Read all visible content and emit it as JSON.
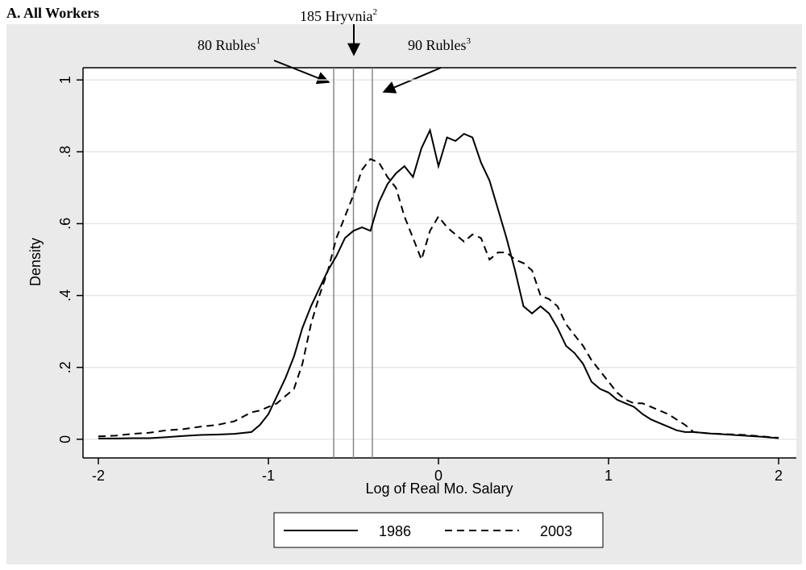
{
  "chart_data": {
    "type": "line",
    "title": "A. All Workers",
    "x_label": "Log of Real Mo. Salary",
    "y_label": "Density",
    "x": [
      -2,
      -1.9,
      -1.8,
      -1.7,
      -1.6,
      -1.5,
      -1.4,
      -1.3,
      -1.2,
      -1.1,
      -1.05,
      -1,
      -0.95,
      -0.9,
      -0.85,
      -0.8,
      -0.75,
      -0.7,
      -0.65,
      -0.6,
      -0.55,
      -0.5,
      -0.45,
      -0.4,
      -0.35,
      -0.3,
      -0.25,
      -0.2,
      -0.15,
      -0.1,
      -0.05,
      0,
      0.05,
      0.1,
      0.15,
      0.2,
      0.25,
      0.3,
      0.35,
      0.4,
      0.45,
      0.5,
      0.55,
      0.6,
      0.65,
      0.7,
      0.75,
      0.8,
      0.85,
      0.9,
      0.95,
      1,
      1.05,
      1.1,
      1.15,
      1.2,
      1.25,
      1.3,
      1.35,
      1.4,
      1.45,
      1.5,
      1.6,
      1.7,
      1.8,
      1.9,
      2
    ],
    "series": [
      {
        "name": "1986",
        "color": "#000000",
        "dash": "solid",
        "values": [
          0.002,
          0.002,
          0.003,
          0.003,
          0.006,
          0.009,
          0.012,
          0.013,
          0.015,
          0.02,
          0.04,
          0.07,
          0.12,
          0.17,
          0.23,
          0.31,
          0.37,
          0.42,
          0.47,
          0.51,
          0.56,
          0.58,
          0.59,
          0.58,
          0.66,
          0.71,
          0.74,
          0.76,
          0.73,
          0.81,
          0.86,
          0.76,
          0.84,
          0.83,
          0.85,
          0.84,
          0.77,
          0.72,
          0.64,
          0.56,
          0.47,
          0.37,
          0.35,
          0.37,
          0.35,
          0.31,
          0.26,
          0.24,
          0.21,
          0.16,
          0.14,
          0.13,
          0.11,
          0.1,
          0.09,
          0.07,
          0.055,
          0.045,
          0.035,
          0.025,
          0.02,
          0.02,
          0.016,
          0.013,
          0.01,
          0.007,
          0.003
        ]
      },
      {
        "name": "2003",
        "color": "#000000",
        "dash": "dashed",
        "values": [
          0.008,
          0.01,
          0.015,
          0.018,
          0.025,
          0.028,
          0.035,
          0.04,
          0.05,
          0.075,
          0.08,
          0.09,
          0.1,
          0.12,
          0.14,
          0.21,
          0.32,
          0.4,
          0.47,
          0.56,
          0.62,
          0.68,
          0.75,
          0.78,
          0.77,
          0.73,
          0.7,
          0.62,
          0.56,
          0.5,
          0.58,
          0.62,
          0.59,
          0.57,
          0.55,
          0.57,
          0.56,
          0.5,
          0.52,
          0.52,
          0.5,
          0.49,
          0.47,
          0.4,
          0.39,
          0.37,
          0.32,
          0.29,
          0.26,
          0.22,
          0.19,
          0.16,
          0.13,
          0.11,
          0.1,
          0.1,
          0.09,
          0.08,
          0.07,
          0.055,
          0.04,
          0.02,
          0.016,
          0.014,
          0.012,
          0.008,
          0.004
        ]
      }
    ],
    "xlim": [
      -2.09,
      2.104
    ],
    "ylim": [
      -0.052,
      1.034
    ],
    "xticks": [
      -2,
      -1,
      0,
      1,
      2
    ],
    "yticks": [
      0,
      {
        "value": 0.2,
        "label": ".2"
      },
      {
        "value": 0.4,
        "label": ".4"
      },
      {
        "value": 0.6,
        "label": ".6"
      },
      {
        "value": 0.8,
        "label": ".8"
      },
      1
    ],
    "grid": true,
    "legend": "bottom",
    "reference_lines": [
      {
        "x": -0.616,
        "text": "80 Rubles",
        "sup": "1"
      },
      {
        "x": -0.5,
        "text": "185 Hryvnia",
        "sup": "2"
      },
      {
        "x": -0.389,
        "text": "90 Rubles",
        "sup": "3"
      }
    ]
  }
}
